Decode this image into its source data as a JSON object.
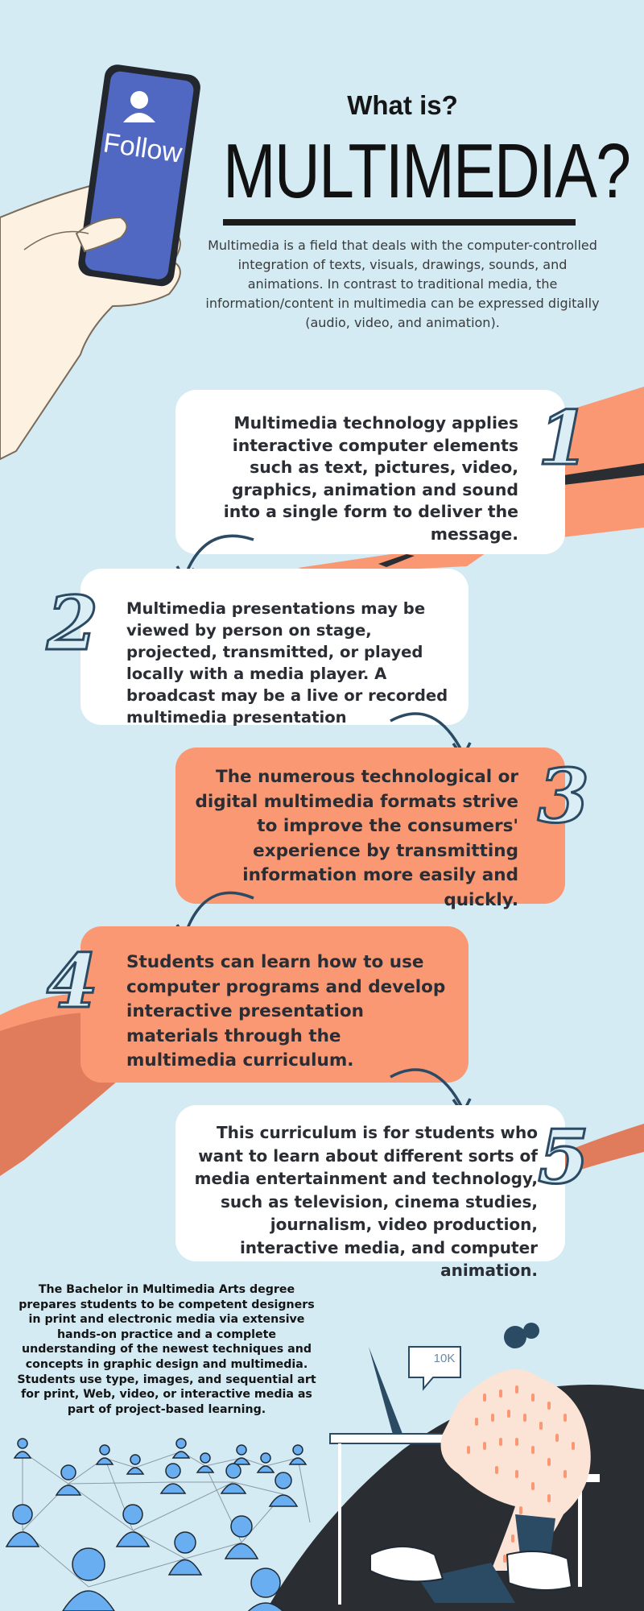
{
  "header": {
    "subtitle": "What is?",
    "title": "MULTIMEDIA?",
    "intro": "Multimedia is a field that deals with the computer-controlled integration of texts, visuals, drawings, sounds, and animations. In contrast to traditional media, the information/content in multimedia can be expressed digitally (audio, video, and animation)."
  },
  "phone": {
    "button_label": "Follow",
    "icon": "user-icon"
  },
  "steps": [
    {
      "number": "1",
      "text": "Multimedia technology applies interactive computer elements such as text, pictures, video, graphics, animation and sound into a single form to deliver the message."
    },
    {
      "number": "2",
      "text": "Multimedia presentations may be viewed by person on stage, projected, transmitted, or played locally with a media player. A broadcast may be a live or recorded multimedia presentation"
    },
    {
      "number": "3",
      "text": "The numerous technological or digital multimedia formats strive to improve the consumers' experience by transmitting information more easily and quickly."
    },
    {
      "number": "4",
      "text": "Students can learn how to use computer programs and develop interactive presentation materials through the multimedia curriculum."
    },
    {
      "number": "5",
      "text": "This curriculum is for students who want to learn about different sorts of media entertainment and technology, such as television, cinema studies, journalism, video production, interactive media, and computer animation."
    }
  ],
  "footer": {
    "text": "The Bachelor in Multimedia Arts degree prepares students to be competent designers in print and electronic media via extensive hands-on practice and a complete understanding of the newest techniques and concepts in graphic design and multimedia. Students use type, images, and sequential art for print, Web, video, or interactive media as part of project-based learning.",
    "bubble_label": "10K"
  },
  "colors": {
    "background": "#d4ebf4",
    "accent_orange": "#fa9874",
    "dark_orange": "#e07b5b",
    "navy": "#2b4a63",
    "phone_blue": "#5068c2",
    "person_blue": "#6aaef2",
    "dark": "#2a2d32"
  }
}
